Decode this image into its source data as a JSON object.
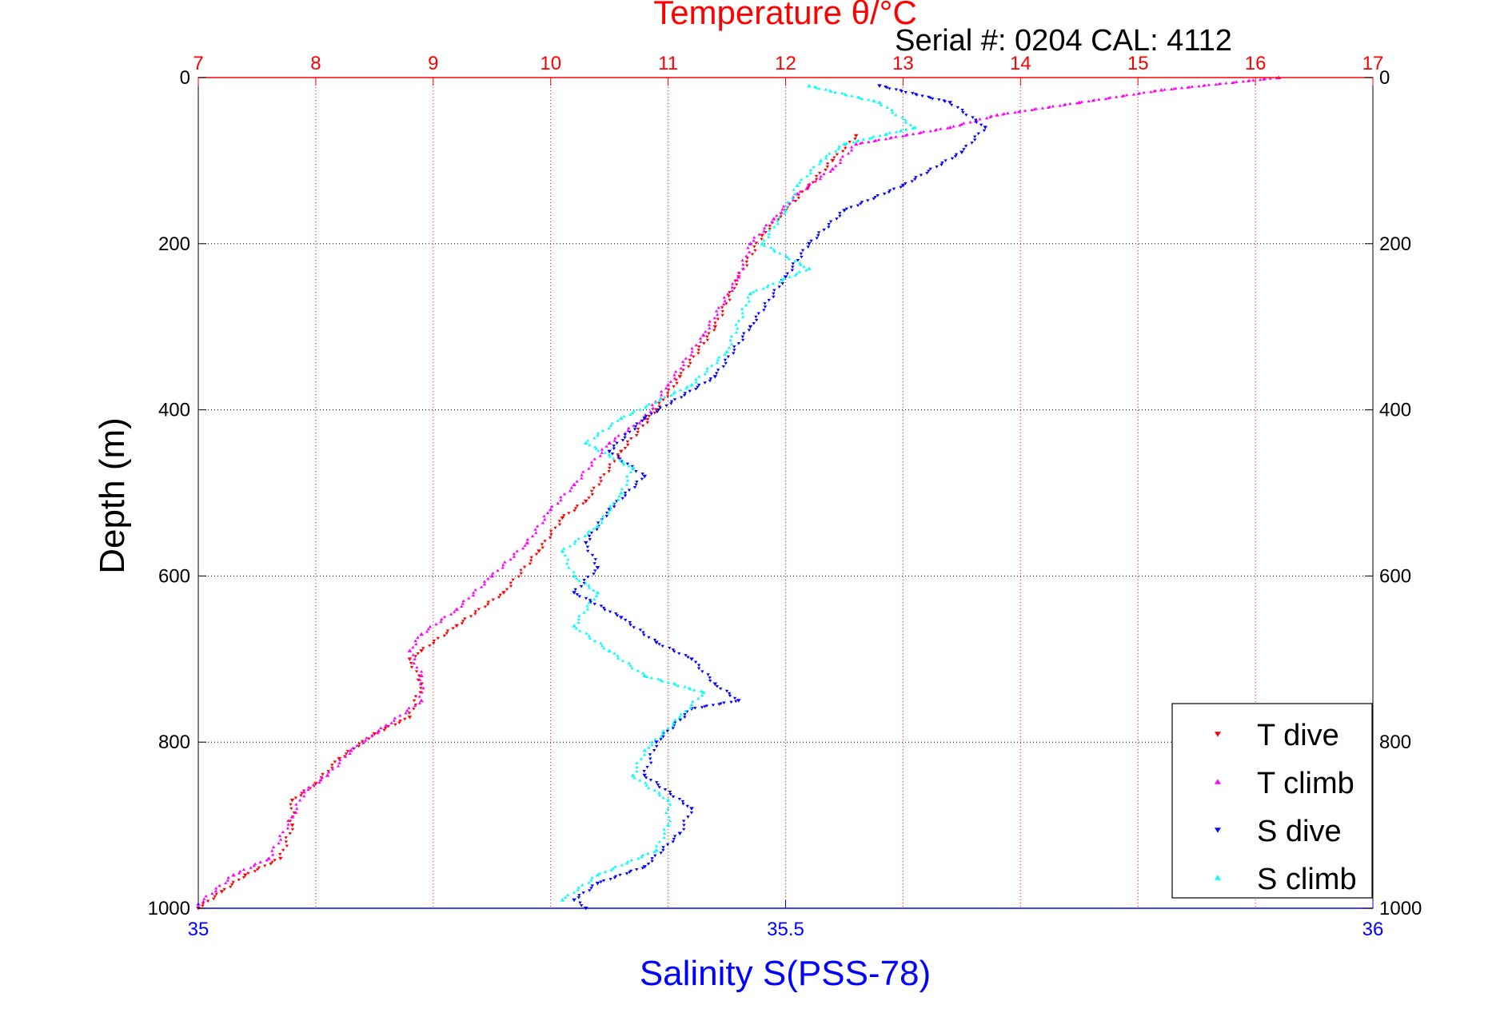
{
  "chart_data": {
    "type": "scatter",
    "title_top": "Temperature θ/°C",
    "subtitle": "Serial #: 0204  CAL: 4112",
    "ylabel": "Depth (m)",
    "xlabel_bottom": "Salinity S(PSS-78)",
    "y_axis": {
      "range": [
        0,
        1000
      ],
      "reversed": true,
      "ticks": [
        "0",
        "200",
        "400",
        "600",
        "800",
        "1000"
      ],
      "tick_values": [
        0,
        200,
        400,
        600,
        800,
        1000
      ]
    },
    "x_top": {
      "label": "Temperature θ/°C",
      "range": [
        7,
        17
      ],
      "ticks": [
        "7",
        "8",
        "9",
        "10",
        "11",
        "12",
        "13",
        "14",
        "15",
        "16",
        "17"
      ],
      "tick_values": [
        7,
        8,
        9,
        10,
        11,
        12,
        13,
        14,
        15,
        16,
        17
      ],
      "color": "#ff0000"
    },
    "x_bottom": {
      "label": "Salinity S(PSS-78)",
      "range": [
        35,
        36
      ],
      "ticks": [
        "35",
        "35.5",
        "36"
      ],
      "tick_values": [
        35,
        35.5,
        36
      ],
      "color": "#0000ff"
    },
    "grid": {
      "horizontal": true,
      "vertical_top_axis": true,
      "horizontal_color": "#000000",
      "vertical_color": "#ff0000"
    },
    "legend": {
      "placement": "bottom-right",
      "entries": [
        {
          "label": "T dive",
          "color": "#ff0000",
          "marker": "triangle-down"
        },
        {
          "label": "T climb",
          "color": "#ff00ff",
          "marker": "triangle-up"
        },
        {
          "label": "S dive",
          "color": "#0000ff",
          "marker": "triangle-down"
        },
        {
          "label": "S climb",
          "color": "#00ffff",
          "marker": "triangle-up"
        }
      ]
    },
    "series": [
      {
        "name": "T dive",
        "axis": "temperature",
        "color": "#ff0000",
        "marker": "triangle-down",
        "points": [
          [
            12.6,
            70
          ],
          [
            12.4,
            100
          ],
          [
            12.2,
            130
          ],
          [
            12.0,
            160
          ],
          [
            11.8,
            190
          ],
          [
            11.6,
            240
          ],
          [
            11.4,
            300
          ],
          [
            11.1,
            360
          ],
          [
            10.9,
            400
          ],
          [
            10.6,
            450
          ],
          [
            10.3,
            510
          ],
          [
            10.1,
            530
          ],
          [
            9.9,
            570
          ],
          [
            9.6,
            620
          ],
          [
            9.2,
            660
          ],
          [
            8.9,
            690
          ],
          [
            8.8,
            700
          ],
          [
            8.9,
            730
          ],
          [
            8.8,
            770
          ],
          [
            8.5,
            790
          ],
          [
            8.2,
            820
          ],
          [
            8.0,
            850
          ],
          [
            7.8,
            870
          ],
          [
            7.8,
            900
          ],
          [
            7.7,
            940
          ],
          [
            7.4,
            960
          ],
          [
            7.2,
            980
          ],
          [
            7.0,
            1000
          ]
        ]
      },
      {
        "name": "T climb",
        "axis": "temperature",
        "color": "#ff00ff",
        "marker": "triangle-up",
        "points": [
          [
            16.2,
            0
          ],
          [
            15.2,
            15
          ],
          [
            14.5,
            30
          ],
          [
            13.8,
            45
          ],
          [
            13.4,
            60
          ],
          [
            12.6,
            80
          ],
          [
            12.4,
            110
          ],
          [
            12.1,
            140
          ],
          [
            11.9,
            170
          ],
          [
            11.7,
            200
          ],
          [
            11.6,
            240
          ],
          [
            11.3,
            310
          ],
          [
            11.0,
            370
          ],
          [
            10.8,
            410
          ],
          [
            10.5,
            440
          ],
          [
            10.2,
            490
          ],
          [
            10.0,
            520
          ],
          [
            9.8,
            560
          ],
          [
            9.5,
            600
          ],
          [
            9.2,
            640
          ],
          [
            8.9,
            670
          ],
          [
            8.8,
            690
          ],
          [
            8.9,
            720
          ],
          [
            8.9,
            750
          ],
          [
            8.6,
            780
          ],
          [
            8.3,
            810
          ],
          [
            8.1,
            840
          ],
          [
            7.9,
            860
          ],
          [
            7.8,
            890
          ],
          [
            7.6,
            940
          ],
          [
            7.3,
            960
          ],
          [
            7.0,
            995
          ]
        ]
      },
      {
        "name": "S dive",
        "axis": "salinity",
        "color": "#0000ff",
        "marker": "triangle-down",
        "points": [
          [
            35.58,
            10
          ],
          [
            35.64,
            30
          ],
          [
            35.67,
            60
          ],
          [
            35.65,
            90
          ],
          [
            35.6,
            130
          ],
          [
            35.55,
            160
          ],
          [
            35.52,
            200
          ],
          [
            35.5,
            240
          ],
          [
            35.47,
            300
          ],
          [
            35.44,
            360
          ],
          [
            35.38,
            410
          ],
          [
            35.35,
            450
          ],
          [
            35.38,
            480
          ],
          [
            35.35,
            520
          ],
          [
            35.33,
            560
          ],
          [
            35.34,
            590
          ],
          [
            35.32,
            620
          ],
          [
            35.36,
            650
          ],
          [
            35.39,
            680
          ],
          [
            35.42,
            700
          ],
          [
            35.44,
            730
          ],
          [
            35.46,
            750
          ],
          [
            35.42,
            760
          ],
          [
            35.39,
            800
          ],
          [
            35.38,
            840
          ],
          [
            35.42,
            880
          ],
          [
            35.41,
            910
          ],
          [
            35.38,
            950
          ],
          [
            35.34,
            970
          ],
          [
            35.32,
            990
          ],
          [
            35.33,
            1000
          ]
        ]
      },
      {
        "name": "S climb",
        "axis": "salinity",
        "color": "#00ffff",
        "marker": "triangle-up",
        "points": [
          [
            35.52,
            10
          ],
          [
            35.58,
            30
          ],
          [
            35.61,
            60
          ],
          [
            35.55,
            80
          ],
          [
            35.53,
            100
          ],
          [
            35.51,
            130
          ],
          [
            35.5,
            160
          ],
          [
            35.48,
            200
          ],
          [
            35.52,
            230
          ],
          [
            35.47,
            260
          ],
          [
            35.45,
            330
          ],
          [
            35.42,
            370
          ],
          [
            35.36,
            410
          ],
          [
            35.33,
            440
          ],
          [
            35.37,
            470
          ],
          [
            35.36,
            500
          ],
          [
            35.34,
            540
          ],
          [
            35.31,
            570
          ],
          [
            35.32,
            600
          ],
          [
            35.34,
            620
          ],
          [
            35.32,
            660
          ],
          [
            35.35,
            690
          ],
          [
            35.38,
            720
          ],
          [
            35.43,
            740
          ],
          [
            35.41,
            770
          ],
          [
            35.38,
            810
          ],
          [
            35.37,
            840
          ],
          [
            35.4,
            870
          ],
          [
            35.4,
            900
          ],
          [
            35.39,
            930
          ],
          [
            35.34,
            960
          ],
          [
            35.31,
            990
          ]
        ]
      }
    ]
  }
}
